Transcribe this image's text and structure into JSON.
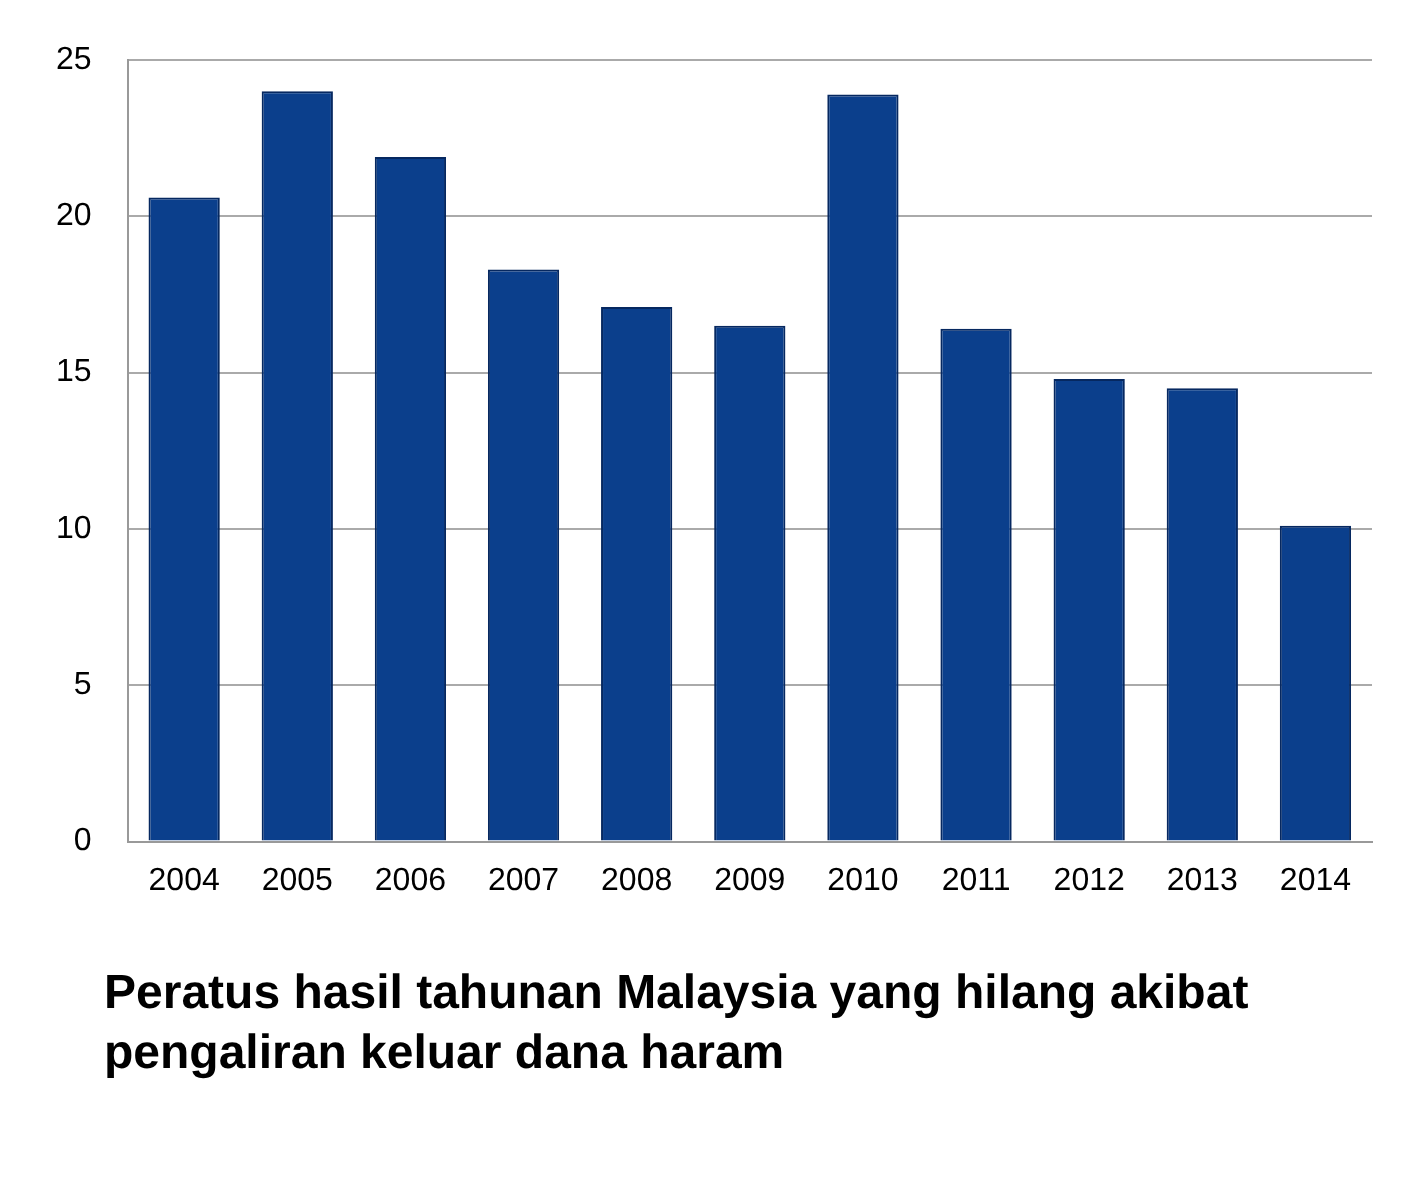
{
  "chart_data": {
    "type": "bar",
    "title": "Peratus hasil tahunan Malaysia yang hilang akibat pengaliran keluar dana haram",
    "categories": [
      "2004",
      "2005",
      "2006",
      "2007",
      "2008",
      "2009",
      "2010",
      "2011",
      "2012",
      "2013",
      "2014"
    ],
    "values": [
      20.6,
      24.0,
      21.9,
      18.3,
      17.1,
      16.5,
      23.9,
      16.4,
      14.8,
      14.5,
      10.1
    ],
    "color": "#0b3f8c",
    "ylim": [
      0,
      25
    ],
    "yticks": [
      0,
      5,
      10,
      15,
      20,
      25
    ],
    "grid": "y",
    "legend": false
  }
}
